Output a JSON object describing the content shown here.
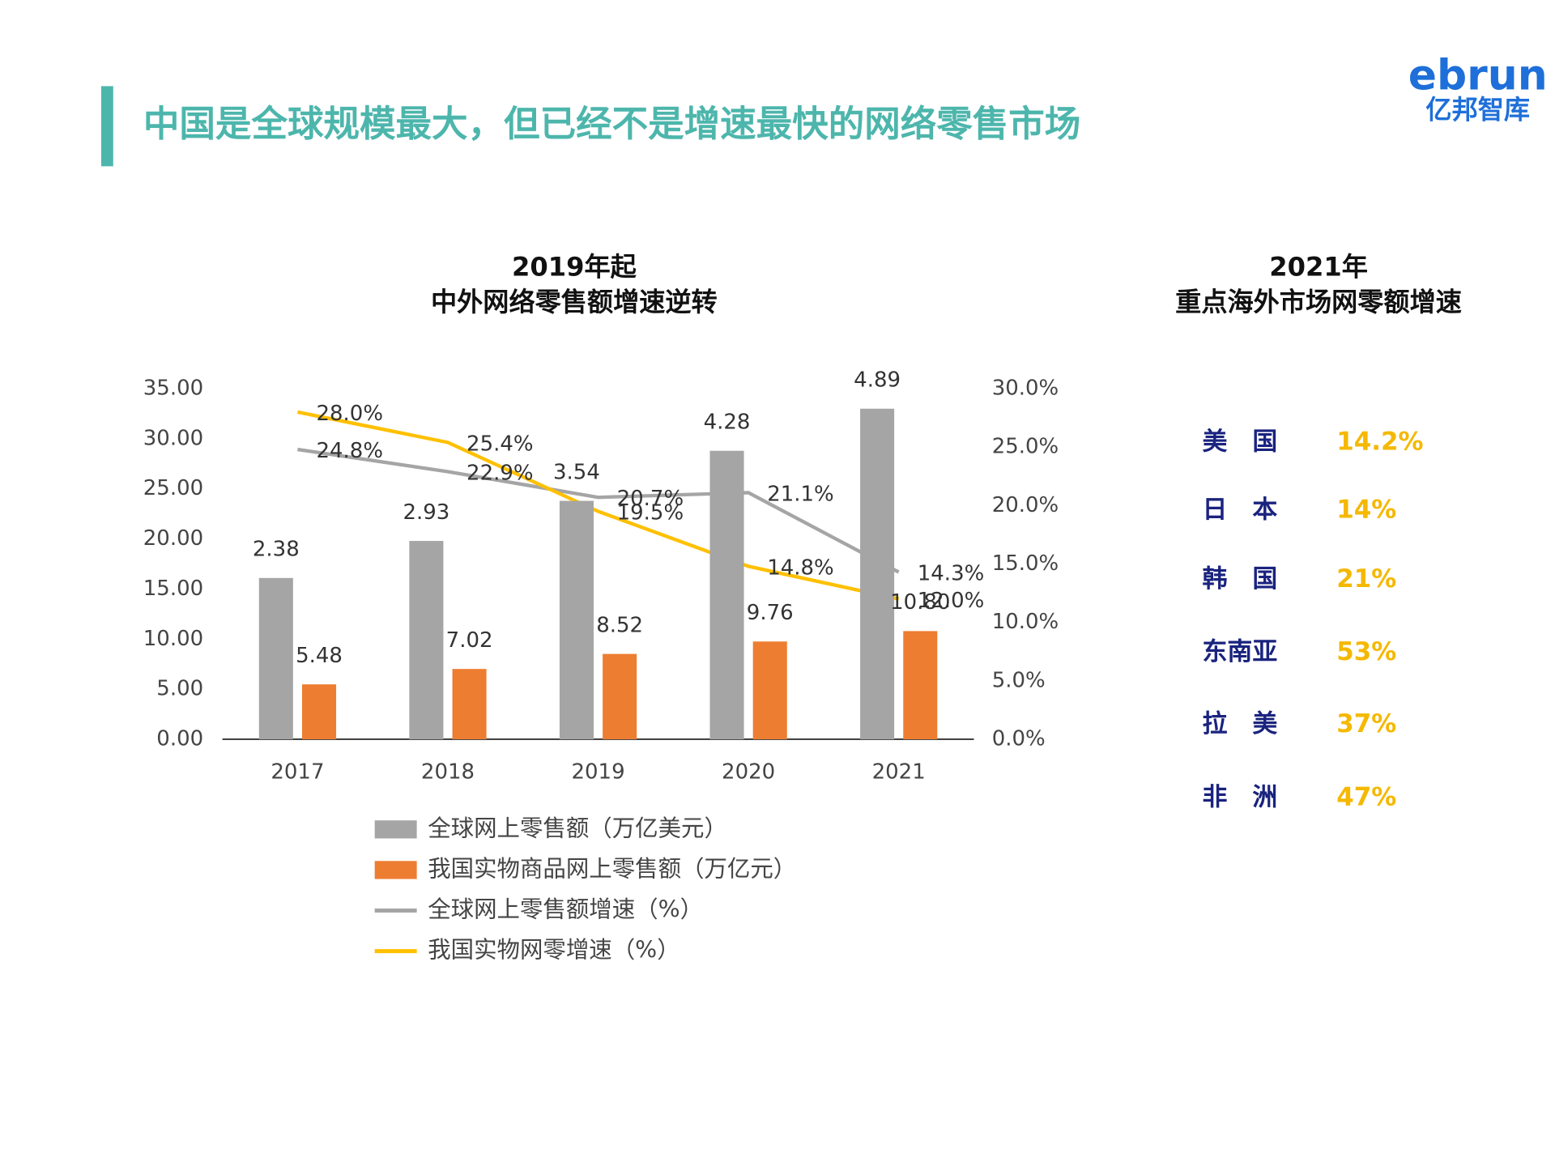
{
  "header": {
    "title": "中国是全球规模最大，但已经不是增速最快的网络零售市场",
    "logo": "ebrun",
    "logo_sub": "亿邦智库"
  },
  "chart_data": {
    "type": "bar",
    "title": "2019年起",
    "subtitle": "中外网络零售额增速逆转",
    "categories": [
      "2017",
      "2018",
      "2019",
      "2020",
      "2021"
    ],
    "series": [
      {
        "name": "全球网上零售额（万亿美元）",
        "color": "#a5a5a5",
        "type": "bar",
        "values": [
          16.1,
          19.8,
          23.8,
          28.8,
          33.0
        ],
        "labels": [
          "2.38",
          "2.93",
          "3.54",
          "4.28",
          "4.89"
        ]
      },
      {
        "name": "我国实物商品网上零售额（万亿元）",
        "color": "#ed7d31",
        "type": "bar",
        "values": [
          5.48,
          7.02,
          8.52,
          9.76,
          10.8
        ],
        "value_labels": [
          "5.48",
          "7.02",
          "8.52",
          "9.76",
          "10.80"
        ]
      },
      {
        "name": "全球网上零售额增速（%）",
        "color": "#a5a5a5",
        "type": "line",
        "axis": "y2",
        "values": [
          24.8,
          22.9,
          20.7,
          21.1,
          14.3
        ],
        "value_labels": [
          "24.8%",
          "22.9%",
          "20.7%",
          "21.1%",
          "14.3%"
        ]
      },
      {
        "name": "我国实物网零增速（%）",
        "color": "#ffc000",
        "type": "line",
        "axis": "y2",
        "values": [
          28.0,
          25.4,
          19.5,
          14.8,
          12.0
        ],
        "value_labels": [
          "28.0%",
          "25.4%",
          "19.5%",
          "14.8%",
          "12.0%"
        ]
      }
    ],
    "ylim": [
      0,
      35
    ],
    "yticks": [
      {
        "value": 0,
        "label": "0.00"
      },
      {
        "value": 5,
        "label": "5.00"
      },
      {
        "value": 10,
        "label": "10.00"
      },
      {
        "value": 15,
        "label": "15.00"
      },
      {
        "value": 20,
        "label": "20.00"
      },
      {
        "value": 25,
        "label": "25.00"
      },
      {
        "value": 30,
        "label": "30.00"
      },
      {
        "value": 35,
        "label": "35.00"
      }
    ],
    "y2lim": [
      0,
      30
    ],
    "y2ticks": [
      {
        "value": 0,
        "label": "0.0%"
      },
      {
        "value": 5,
        "label": "5.0%"
      },
      {
        "value": 10,
        "label": "10.0%"
      },
      {
        "value": 15,
        "label": "15.0%"
      },
      {
        "value": 20,
        "label": "20.0%"
      },
      {
        "value": 25,
        "label": "25.0%"
      },
      {
        "value": 30,
        "label": "30.0%"
      }
    ],
    "grid": false,
    "legend": "bottom"
  },
  "side_panel": {
    "title": "2021年",
    "subtitle": "重点海外市场网零额增速",
    "rows": [
      {
        "name": "美　国",
        "value": "14.2%"
      },
      {
        "name": "日　本",
        "value": "14%"
      },
      {
        "name": "韩　国",
        "value": "21%"
      },
      {
        "name": "东南亚",
        "value": "53%"
      },
      {
        "name": "拉　美",
        "value": "37%"
      },
      {
        "name": "非　洲",
        "value": "47%"
      }
    ]
  }
}
